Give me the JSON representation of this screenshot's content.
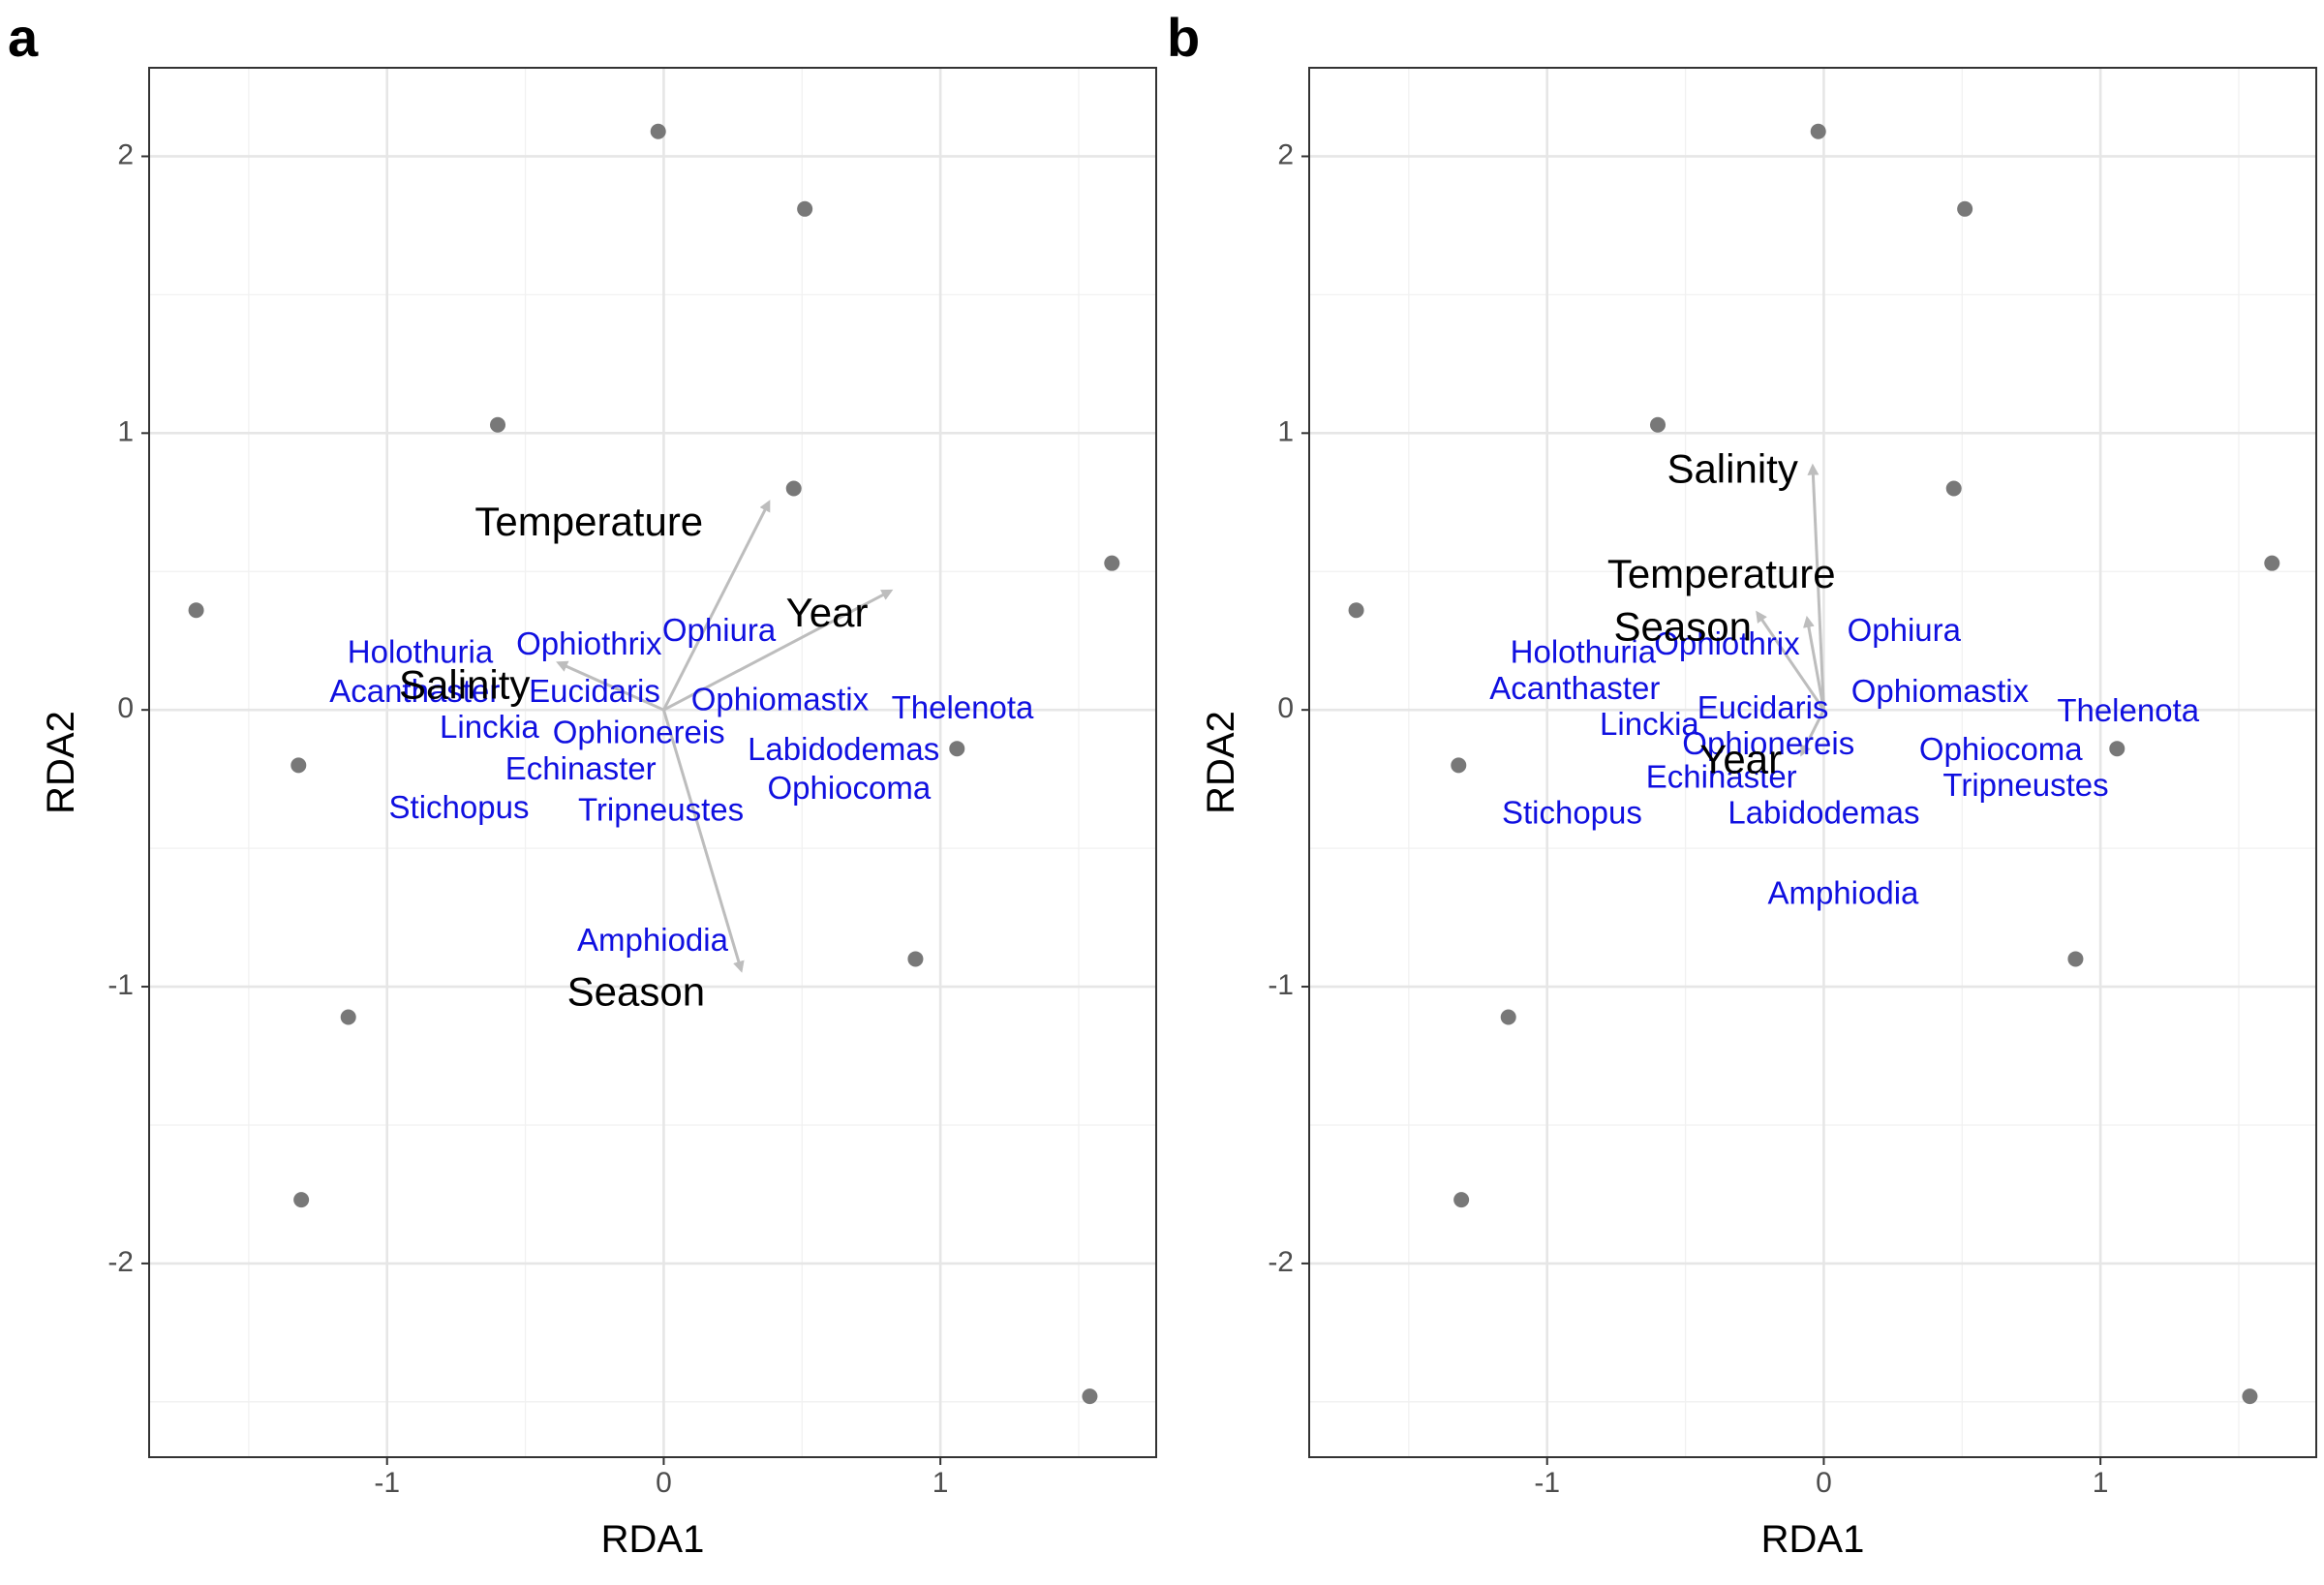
{
  "chart_data": [
    {
      "panel_label": "a",
      "type": "scatter",
      "xlabel": "RDA1",
      "ylabel": "RDA2",
      "xlim": [
        -1.86,
        1.78
      ],
      "ylim": [
        -2.7,
        2.32
      ],
      "x_ticks": [
        -1,
        0,
        1
      ],
      "x_tick_labels": [
        "-1",
        "0",
        "1"
      ],
      "y_ticks": [
        -2,
        -1,
        0,
        1,
        2
      ],
      "y_tick_labels": [
        "-2",
        "-1",
        "0",
        "1",
        "2"
      ],
      "grid": true,
      "site_points": [
        {
          "x": -0.02,
          "y": 2.09
        },
        {
          "x": 0.51,
          "y": 1.81
        },
        {
          "x": -0.6,
          "y": 1.03
        },
        {
          "x": 0.47,
          "y": 0.8
        },
        {
          "x": 1.62,
          "y": 0.53
        },
        {
          "x": -1.69,
          "y": 0.36
        },
        {
          "x": -1.32,
          "y": -0.2
        },
        {
          "x": 1.06,
          "y": -0.14
        },
        {
          "x": 0.91,
          "y": -0.9
        },
        {
          "x": -1.14,
          "y": -1.11
        },
        {
          "x": -1.31,
          "y": -1.77
        },
        {
          "x": 1.54,
          "y": -2.48
        }
      ],
      "arrows": [
        {
          "name": "Temperature",
          "x": 0.38,
          "y": 0.75,
          "label_x": -0.27,
          "label_y": 0.67
        },
        {
          "name": "Year",
          "x": 0.82,
          "y": 0.43,
          "label_x": 0.59,
          "label_y": 0.34
        },
        {
          "name": "Salinity",
          "x": -0.38,
          "y": 0.17,
          "label_x": -0.72,
          "label_y": 0.08
        },
        {
          "name": "Season",
          "x": 0.28,
          "y": -0.94,
          "label_x": -0.1,
          "label_y": -1.03
        }
      ],
      "species": [
        {
          "name": "Holothuria",
          "x": -0.88,
          "y": 0.2
        },
        {
          "name": "Ophiothrix",
          "x": -0.27,
          "y": 0.23
        },
        {
          "name": "Ophiura",
          "x": 0.2,
          "y": 0.28
        },
        {
          "name": "Acanthaster",
          "x": -0.9,
          "y": 0.06
        },
        {
          "name": "Eucidaris",
          "x": -0.25,
          "y": 0.06
        },
        {
          "name": "Ophiomastix",
          "x": 0.42,
          "y": 0.03
        },
        {
          "name": "Thelenota",
          "x": 1.08,
          "y": 0.0
        },
        {
          "name": "Linckia",
          "x": -0.63,
          "y": -0.07
        },
        {
          "name": "Ophionereis",
          "x": -0.09,
          "y": -0.09
        },
        {
          "name": "Labidodemas",
          "x": 0.65,
          "y": -0.15
        },
        {
          "name": "Echinaster",
          "x": -0.3,
          "y": -0.22
        },
        {
          "name": "Ophiocoma",
          "x": 0.67,
          "y": -0.29
        },
        {
          "name": "Stichopus",
          "x": -0.74,
          "y": -0.36
        },
        {
          "name": "Tripneustes",
          "x": -0.01,
          "y": -0.37
        },
        {
          "name": "Amphiodia",
          "x": -0.04,
          "y": -0.84
        }
      ]
    },
    {
      "panel_label": "b",
      "type": "scatter",
      "xlabel": "RDA1",
      "ylabel": "RDA2",
      "xlim": [
        -1.86,
        1.78
      ],
      "ylim": [
        -2.7,
        2.32
      ],
      "x_ticks": [
        -1,
        0,
        1
      ],
      "x_tick_labels": [
        "-1",
        "0",
        "1"
      ],
      "y_ticks": [
        -2,
        -1,
        0,
        1,
        2
      ],
      "y_tick_labels": [
        "-2",
        "-1",
        "0",
        "1",
        "2"
      ],
      "grid": true,
      "site_points": [
        {
          "x": -0.02,
          "y": 2.09
        },
        {
          "x": 0.51,
          "y": 1.81
        },
        {
          "x": -0.6,
          "y": 1.03
        },
        {
          "x": 0.47,
          "y": 0.8
        },
        {
          "x": 1.62,
          "y": 0.53
        },
        {
          "x": -1.69,
          "y": 0.36
        },
        {
          "x": -1.32,
          "y": -0.2
        },
        {
          "x": 1.06,
          "y": -0.14
        },
        {
          "x": 0.91,
          "y": -0.9
        },
        {
          "x": -1.14,
          "y": -1.11
        },
        {
          "x": -1.31,
          "y": -1.77
        },
        {
          "x": 1.54,
          "y": -2.48
        }
      ],
      "arrows": [
        {
          "name": "Salinity",
          "x": -0.04,
          "y": 0.88,
          "label_x": -0.33,
          "label_y": 0.86
        },
        {
          "name": "Temperature",
          "x": -0.06,
          "y": 0.33,
          "label_x": -0.37,
          "label_y": 0.48
        },
        {
          "name": "Year",
          "x": -0.08,
          "y": -0.16,
          "label_x": -0.3,
          "label_y": -0.19
        },
        {
          "name": "Season",
          "x": -0.24,
          "y": 0.35,
          "label_x": -0.51,
          "label_y": 0.29
        }
      ],
      "species": [
        {
          "name": "Holothuria",
          "x": -0.87,
          "y": 0.2
        },
        {
          "name": "Ophiothrix",
          "x": -0.35,
          "y": 0.23
        },
        {
          "name": "Ophiura",
          "x": 0.29,
          "y": 0.28
        },
        {
          "name": "Acanthaster",
          "x": -0.9,
          "y": 0.07
        },
        {
          "name": "Eucidaris",
          "x": -0.22,
          "y": 0.0
        },
        {
          "name": "Ophiomastix",
          "x": 0.42,
          "y": 0.06
        },
        {
          "name": "Thelenota",
          "x": 1.1,
          "y": -0.01
        },
        {
          "name": "Linckia",
          "x": -0.63,
          "y": -0.06
        },
        {
          "name": "Ophionereis",
          "x": -0.2,
          "y": -0.13
        },
        {
          "name": "Ophiocoma",
          "x": 0.64,
          "y": -0.15
        },
        {
          "name": "Echinaster",
          "x": -0.37,
          "y": -0.25
        },
        {
          "name": "Tripneustes",
          "x": 0.73,
          "y": -0.28
        },
        {
          "name": "Stichopus",
          "x": -0.91,
          "y": -0.38
        },
        {
          "name": "Labidodemas",
          "x": 0.0,
          "y": -0.38
        },
        {
          "name": "Amphiodia",
          "x": 0.07,
          "y": -0.67
        }
      ]
    }
  ],
  "colors": {
    "species_text": "#1010e0",
    "arrow": "#bdbdbd",
    "site_point": "#787878",
    "grid_major": "#e6e6e6",
    "grid_minor": "#f1f1f1",
    "panel_border": "#333333",
    "axis_text": "#4d4d4d"
  }
}
